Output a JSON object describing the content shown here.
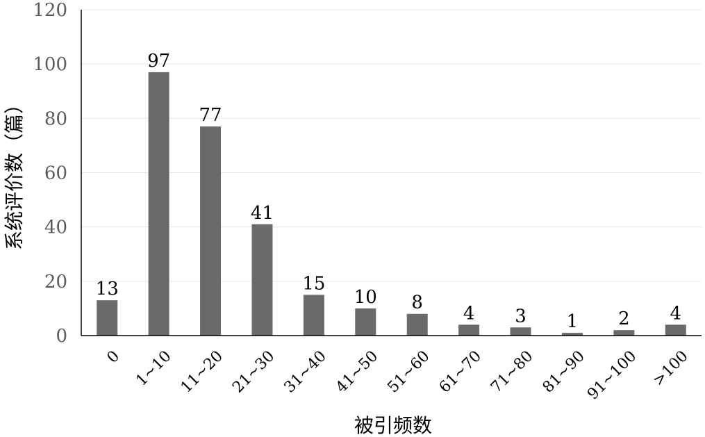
{
  "chart_data": {
    "type": "bar",
    "categories": [
      "0",
      "1~10",
      "11~20",
      "21~30",
      "31~40",
      "41~50",
      "51~60",
      "61~70",
      "71~80",
      "81~90",
      "91~100",
      ">100"
    ],
    "values": [
      13,
      97,
      77,
      41,
      15,
      10,
      8,
      4,
      3,
      1,
      2,
      4
    ],
    "data_labels": [
      "13",
      "97",
      "77",
      "41",
      "15",
      "10",
      "8",
      "4",
      "3",
      "1",
      "2",
      "4"
    ],
    "xlabel": "被引频数",
    "ylabel": "系统评价数（篇）",
    "ylim": [
      0,
      120
    ],
    "yticks": [
      "0",
      "20",
      "40",
      "60",
      "80",
      "100",
      "120"
    ],
    "grid": true,
    "legend": "none",
    "colors": {
      "bar": "#6a6b69",
      "grid": "#e6e6e6",
      "axis": "#000000"
    }
  }
}
